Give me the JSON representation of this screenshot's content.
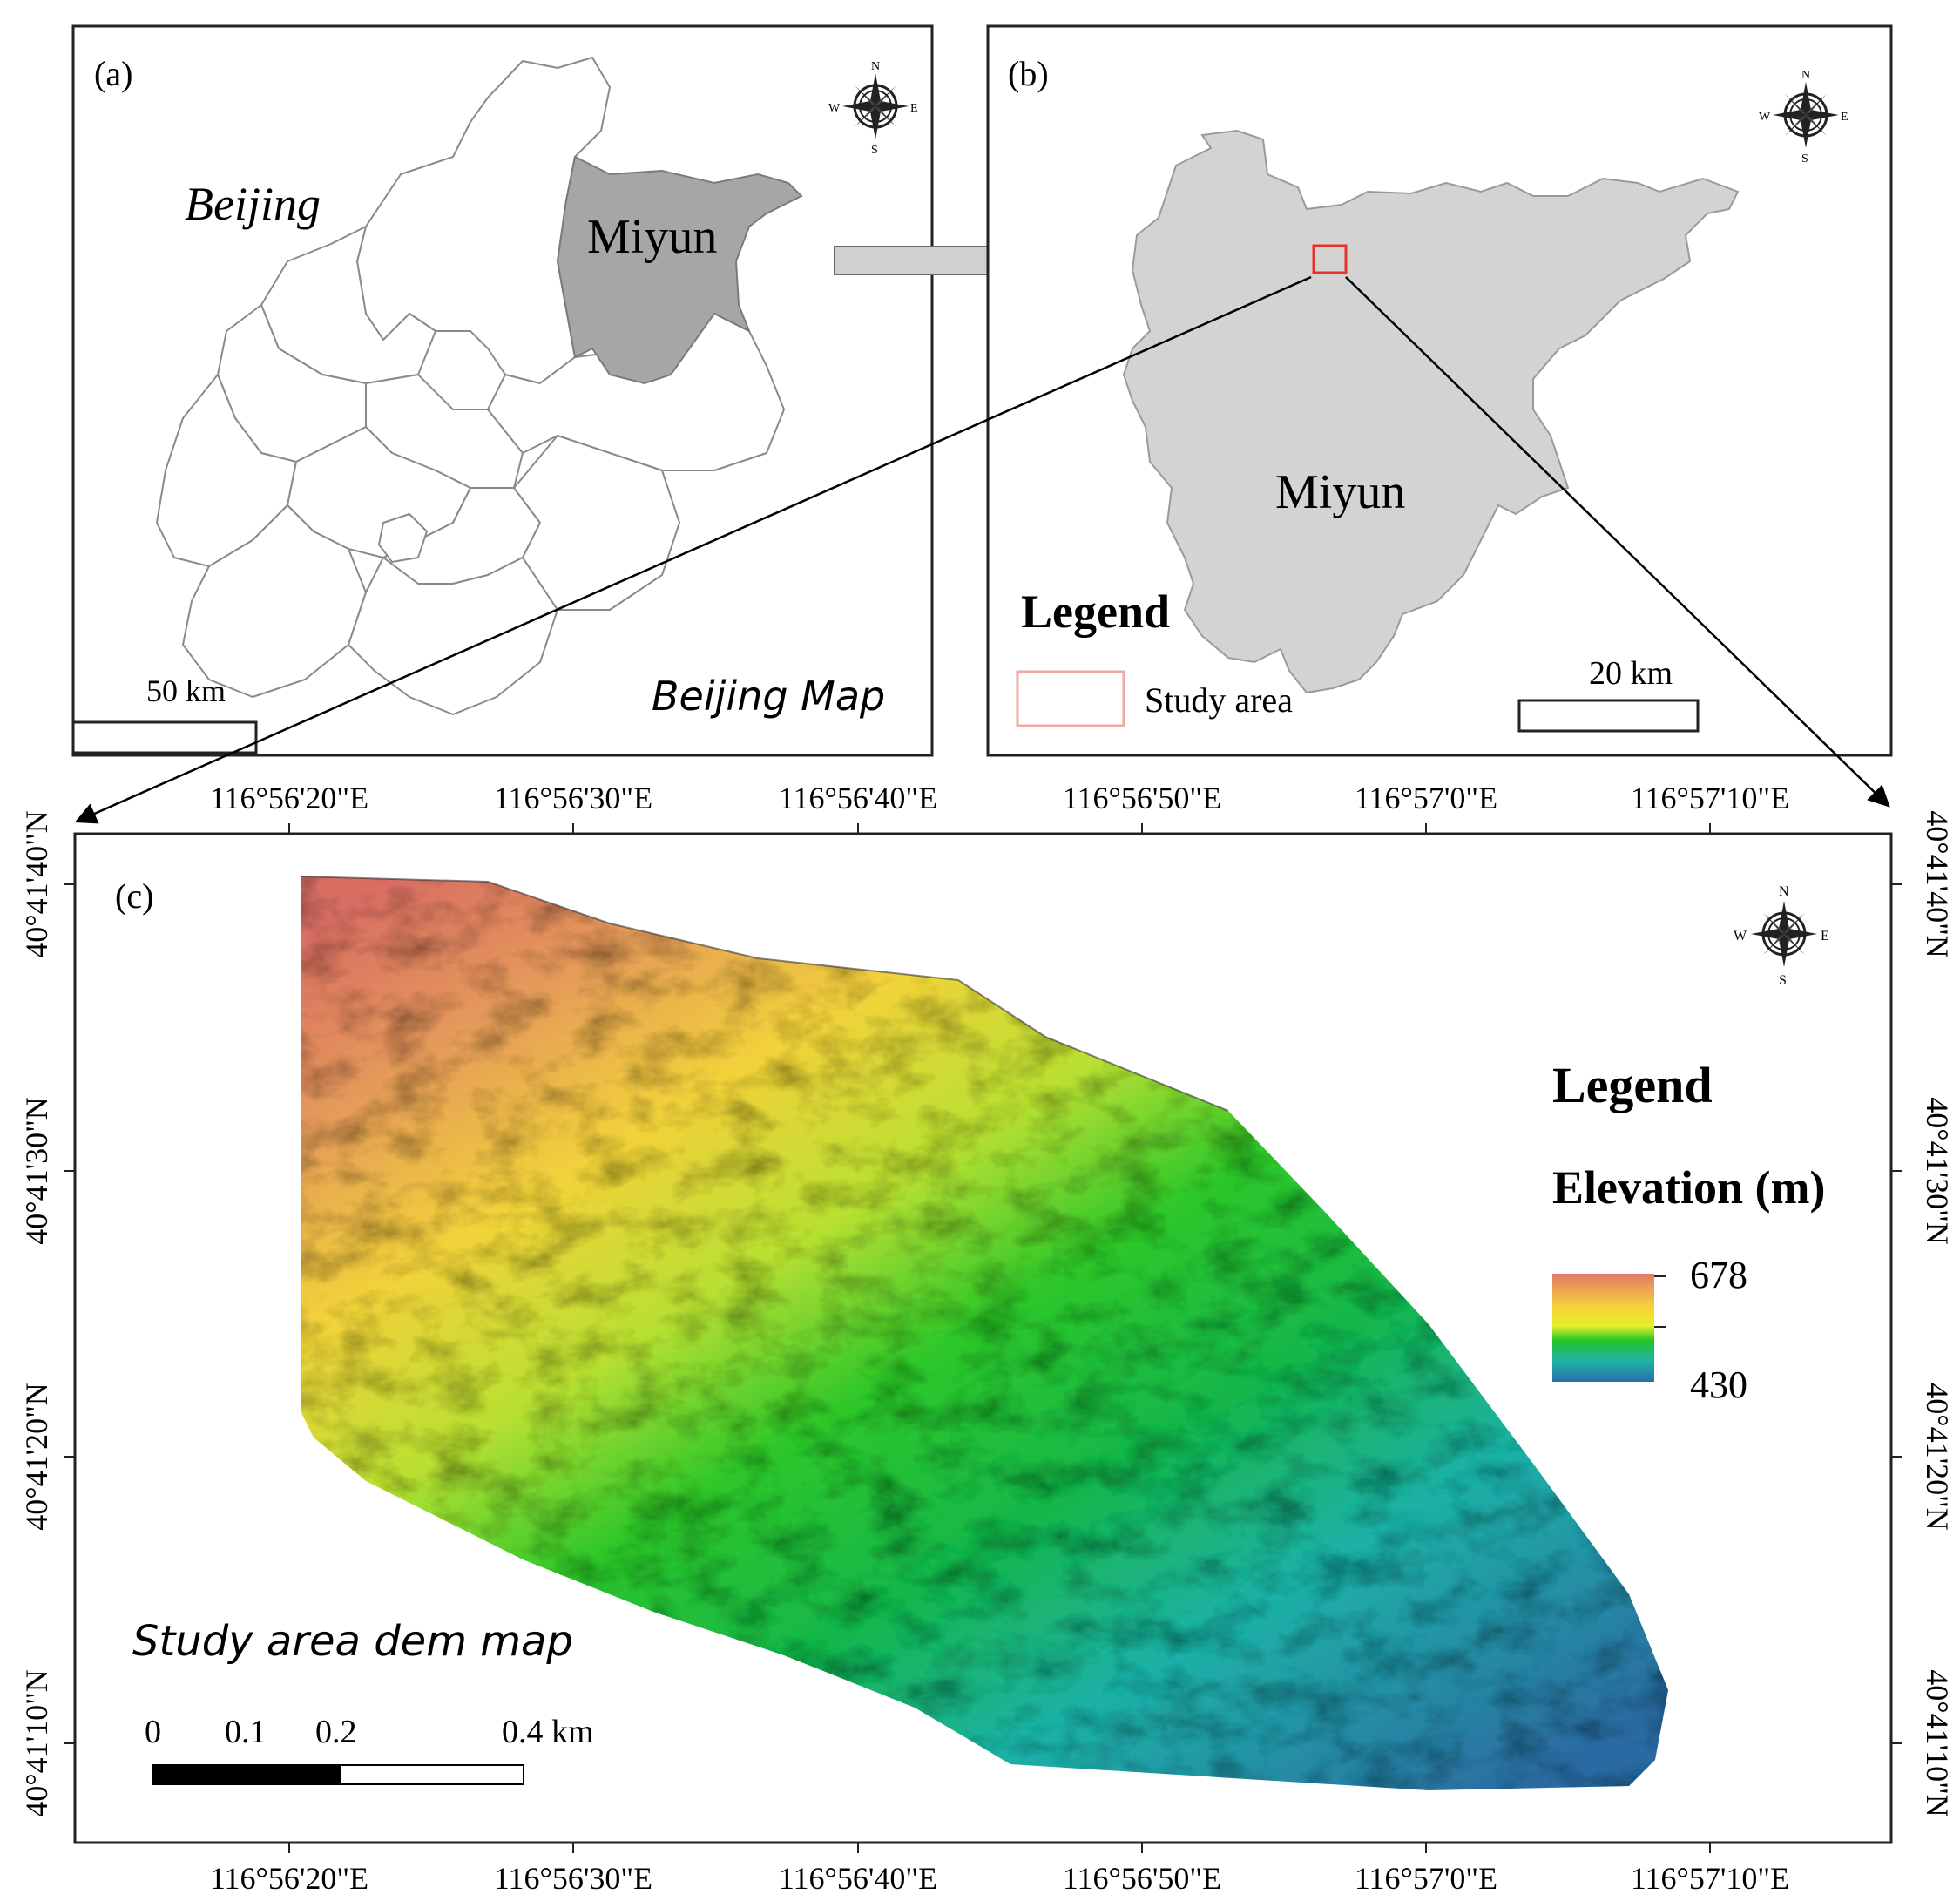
{
  "panel_a": {
    "label": "(a)",
    "region_label": "Beijing",
    "district_label": "Miyun",
    "scale_label": "50 km",
    "caption": "Beijing Map"
  },
  "panel_b": {
    "label": "(b)",
    "district_label": "Miyun",
    "legend_title": "Legend",
    "legend_item": "Study area",
    "scale_label": "20 km"
  },
  "panel_c": {
    "label": "(c)",
    "caption": "Study area dem map",
    "legend_title": "Legend",
    "legend_subtitle": "Elevation (m)",
    "elev_max": "678",
    "elev_min": "430",
    "scale_ticks": [
      "0",
      "0.1",
      "0.2",
      "0.4 km"
    ],
    "lon_ticks": [
      "116°56'20\"E",
      "116°56'30\"E",
      "116°56'40\"E",
      "116°56'50\"E",
      "116°57'0\"E",
      "116°57'10\"E"
    ],
    "lat_ticks": [
      "40°41'40\"N",
      "40°41'30\"N",
      "40°41'20\"N",
      "40°41'10\"N"
    ]
  },
  "compass": {
    "n": "N",
    "s": "S",
    "e": "E",
    "w": "W"
  },
  "colors": {
    "miyun_a": "#a6a6a6",
    "miyun_b": "#d3d3d3",
    "study_box": "#e8302c",
    "dem_high": "#e07a6a",
    "dem_mid": "#f2e422",
    "dem_green": "#19c01d",
    "dem_low": "#2a6fa8"
  }
}
